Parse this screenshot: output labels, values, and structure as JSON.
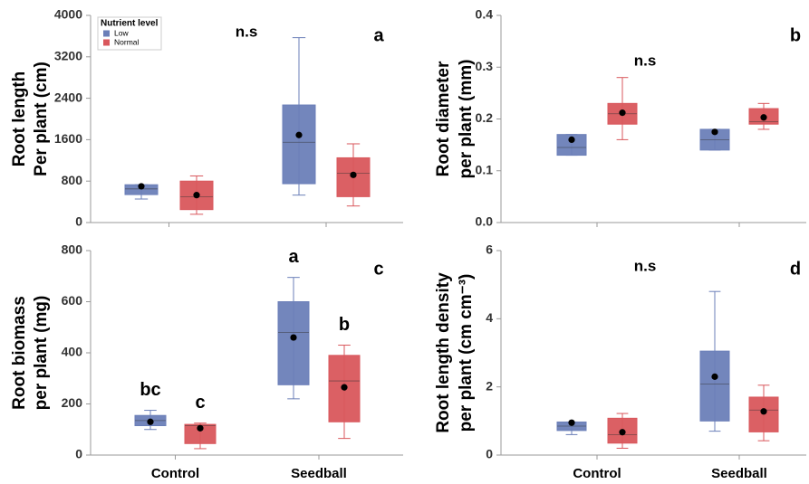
{
  "chart_data": [
    {
      "type": "box",
      "panel_label": "a",
      "note": "n.s",
      "y_label": [
        "Root length",
        "Per plant (cm)"
      ],
      "ylim": [
        0,
        4000
      ],
      "yticks": [
        0,
        800,
        1600,
        2400,
        3200,
        4000
      ],
      "legend": "top-left",
      "legend_title": "Nutrient level",
      "series": [
        {
          "name": "Low",
          "color": "#6b7fb8",
          "whisker_low": [
            454,
            530
          ],
          "q1": [
            540,
            750
          ],
          "median": [
            650,
            1550
          ],
          "q3": [
            730,
            2270
          ],
          "whisker_high": [
            730,
            3570
          ],
          "mean": [
            700,
            1690
          ]
        },
        {
          "name": "Normal",
          "color": "#d9575c",
          "whisker_low": [
            160,
            320
          ],
          "q1": [
            250,
            500
          ],
          "median": [
            500,
            950
          ],
          "q3": [
            800,
            1250
          ],
          "whisker_high": [
            900,
            1520
          ],
          "mean": [
            530,
            920
          ]
        }
      ]
    },
    {
      "type": "box",
      "panel_label": "b",
      "note": "n.s",
      "y_label": [
        "Root diameter",
        "per plant (mm)"
      ],
      "ylim": [
        0,
        0.4
      ],
      "yticks": [
        {
          "value": 0,
          "label": "0.0"
        },
        0.1,
        0.2,
        0.3,
        0.4
      ],
      "series": [
        {
          "color": "#6b7fb8",
          "whisker_low": [
            0.13,
            0.14
          ],
          "q1": [
            0.13,
            0.14
          ],
          "median": [
            0.145,
            0.16
          ],
          "q3": [
            0.17,
            0.18
          ],
          "whisker_high": [
            0.17,
            0.18
          ],
          "mean": [
            0.16,
            0.175
          ]
        },
        {
          "color": "#d9575c",
          "whisker_low": [
            0.16,
            0.18
          ],
          "q1": [
            0.19,
            0.19
          ],
          "median": [
            0.21,
            0.195
          ],
          "q3": [
            0.23,
            0.22
          ],
          "whisker_high": [
            0.28,
            0.23
          ],
          "mean": [
            0.212,
            0.203
          ]
        }
      ]
    },
    {
      "type": "box",
      "panel_label": "c",
      "y_label": [
        "Root biomass",
        "per plant (mg)"
      ],
      "categories": [
        "Control",
        "Seedball"
      ],
      "ylim": [
        0,
        800
      ],
      "yticks": [
        0,
        200,
        400,
        600,
        800
      ],
      "series": [
        {
          "color": "#6b7fb8",
          "whisker_low": [
            100,
            220
          ],
          "q1": [
            115,
            275
          ],
          "median": [
            135,
            480
          ],
          "q3": [
            155,
            600
          ],
          "whisker_high": [
            175,
            695
          ],
          "mean": [
            130,
            460
          ],
          "group_labels": [
            "bc",
            "a"
          ]
        },
        {
          "color": "#d9575c",
          "whisker_low": [
            25,
            65
          ],
          "q1": [
            45,
            130
          ],
          "median": [
            115,
            290
          ],
          "q3": [
            120,
            390
          ],
          "whisker_high": [
            125,
            430
          ],
          "mean": [
            105,
            265
          ],
          "group_labels": [
            "c",
            "b"
          ]
        }
      ]
    },
    {
      "type": "box",
      "panel_label": "d",
      "note": "n.s",
      "y_label": [
        "Root length density",
        "per plant (cm cm⁻³)"
      ],
      "categories": [
        "Control",
        "Seedball"
      ],
      "ylim": [
        0,
        6
      ],
      "yticks": [
        0,
        2,
        4,
        6
      ],
      "series": [
        {
          "color": "#6b7fb8",
          "whisker_low": [
            0.6,
            0.7
          ],
          "q1": [
            0.72,
            1.0
          ],
          "median": [
            0.85,
            2.08
          ],
          "q3": [
            0.97,
            3.05
          ],
          "whisker_high": [
            0.97,
            4.8
          ],
          "mean": [
            0.95,
            2.3
          ]
        },
        {
          "color": "#d9575c",
          "whisker_low": [
            0.2,
            0.42
          ],
          "q1": [
            0.35,
            0.68
          ],
          "median": [
            0.6,
            1.32
          ],
          "q3": [
            1.08,
            1.7
          ],
          "whisker_high": [
            1.22,
            2.05
          ],
          "mean": [
            0.67,
            1.28
          ]
        }
      ]
    }
  ]
}
